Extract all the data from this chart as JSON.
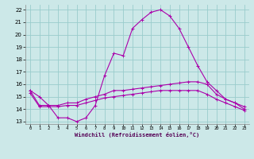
{
  "xlabel": "Windchill (Refroidissement éolien,°C)",
  "ylabel": "",
  "background_color": "#cce8e8",
  "grid_color": "#99cccc",
  "line_color": "#aa00aa",
  "xlim": [
    -0.5,
    23.5
  ],
  "ylim": [
    12.8,
    22.4
  ],
  "xticks": [
    0,
    1,
    2,
    3,
    4,
    5,
    6,
    7,
    8,
    9,
    10,
    11,
    12,
    13,
    14,
    15,
    16,
    17,
    18,
    19,
    20,
    21,
    22,
    23
  ],
  "yticks": [
    13,
    14,
    15,
    16,
    17,
    18,
    19,
    20,
    21,
    22
  ],
  "line1": {
    "x": [
      0,
      1,
      2,
      3,
      4,
      5,
      6,
      7,
      8,
      9,
      10,
      11,
      12,
      13,
      14,
      15,
      16,
      17,
      18,
      19,
      20,
      21,
      22,
      23
    ],
    "y": [
      15.5,
      15.0,
      14.3,
      13.3,
      13.3,
      13.0,
      13.3,
      14.3,
      16.7,
      18.5,
      18.3,
      20.5,
      21.2,
      21.8,
      22.0,
      21.5,
      20.5,
      19.0,
      17.5,
      16.2,
      15.5,
      14.8,
      14.5,
      14.0
    ]
  },
  "line2": {
    "x": [
      0,
      1,
      2,
      3,
      4,
      5,
      6,
      7,
      8,
      9,
      10,
      11,
      12,
      13,
      14,
      15,
      16,
      17,
      18,
      19,
      20,
      21,
      22,
      23
    ],
    "y": [
      15.5,
      14.3,
      14.3,
      14.3,
      14.5,
      14.5,
      14.8,
      15.0,
      15.2,
      15.5,
      15.5,
      15.6,
      15.7,
      15.8,
      15.9,
      16.0,
      16.1,
      16.2,
      16.2,
      16.0,
      15.2,
      14.8,
      14.5,
      14.2
    ]
  },
  "line3": {
    "x": [
      0,
      1,
      2,
      3,
      4,
      5,
      6,
      7,
      8,
      9,
      10,
      11,
      12,
      13,
      14,
      15,
      16,
      17,
      18,
      19,
      20,
      21,
      22,
      23
    ],
    "y": [
      15.3,
      14.2,
      14.2,
      14.2,
      14.3,
      14.3,
      14.5,
      14.7,
      14.9,
      15.0,
      15.1,
      15.2,
      15.3,
      15.4,
      15.5,
      15.5,
      15.5,
      15.5,
      15.5,
      15.2,
      14.8,
      14.5,
      14.2,
      13.9
    ]
  }
}
